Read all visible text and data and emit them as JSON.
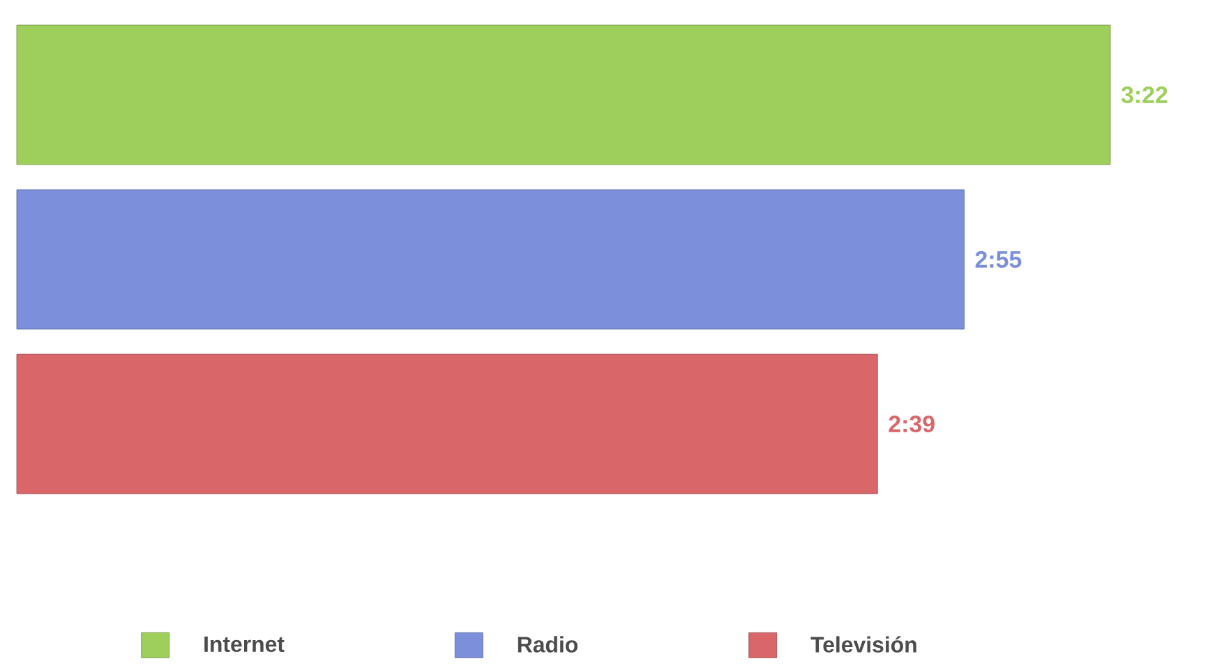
{
  "chart_data": {
    "type": "bar",
    "orientation": "horizontal",
    "categories": [
      null
    ],
    "series": [
      {
        "name": "Internet",
        "color": "#9dcf5a",
        "values": [
          202
        ],
        "value_labels": [
          "3:22"
        ]
      },
      {
        "name": "Radio",
        "color": "#7b8fdb",
        "values": [
          175
        ],
        "value_labels": [
          "2:55"
        ]
      },
      {
        "name": "Televisión",
        "color": "#d9676a",
        "values": [
          159
        ],
        "value_labels": [
          "2:39"
        ]
      }
    ],
    "legend": "bottom"
  }
}
